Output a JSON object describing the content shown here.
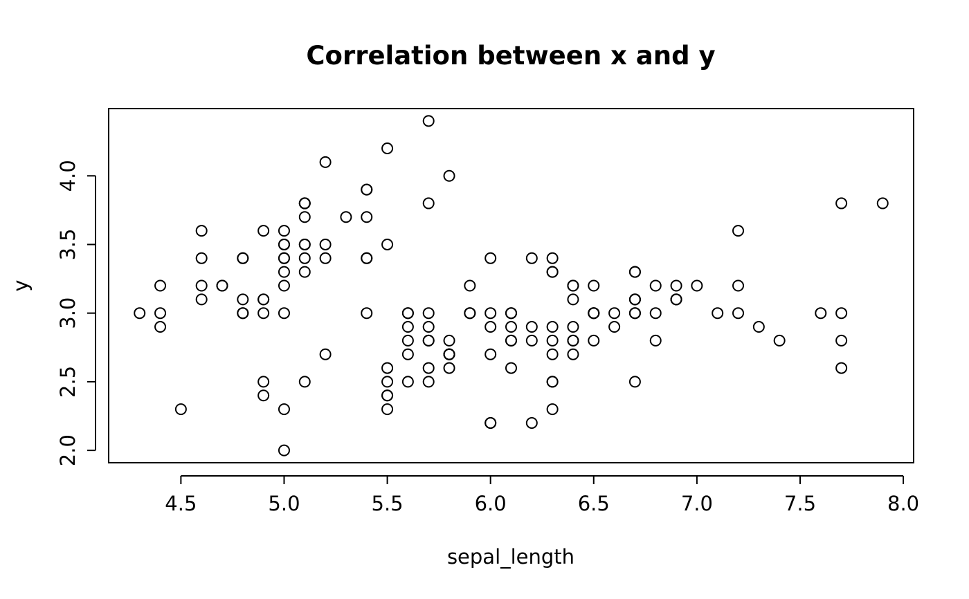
{
  "chart_data": {
    "type": "scatter",
    "title": "Correlation between x and y",
    "xlabel": "sepal_length",
    "ylabel": "y",
    "xlim": [
      4.15,
      8.05
    ],
    "ylim": [
      1.91,
      4.49
    ],
    "xticks": [
      4.5,
      5.0,
      5.5,
      6.0,
      6.5,
      7.0,
      7.5,
      8.0
    ],
    "yticks": [
      2.0,
      2.5,
      3.0,
      3.5,
      4.0
    ],
    "xtick_labels": [
      "4.5",
      "5.0",
      "5.5",
      "6.0",
      "6.5",
      "7.0",
      "7.5",
      "8.0"
    ],
    "ytick_labels": [
      "2.0",
      "2.5",
      "3.0",
      "3.5",
      "4.0"
    ],
    "grid": false,
    "marker": "open-circle",
    "points": [
      [
        5.1,
        3.5
      ],
      [
        4.9,
        3.0
      ],
      [
        4.7,
        3.2
      ],
      [
        4.6,
        3.1
      ],
      [
        5.0,
        3.6
      ],
      [
        5.4,
        3.9
      ],
      [
        4.6,
        3.4
      ],
      [
        5.0,
        3.4
      ],
      [
        4.4,
        2.9
      ],
      [
        4.9,
        3.1
      ],
      [
        5.4,
        3.7
      ],
      [
        4.8,
        3.4
      ],
      [
        4.8,
        3.0
      ],
      [
        4.3,
        3.0
      ],
      [
        5.8,
        4.0
      ],
      [
        5.7,
        4.4
      ],
      [
        5.4,
        3.9
      ],
      [
        5.1,
        3.5
      ],
      [
        5.7,
        3.8
      ],
      [
        5.1,
        3.8
      ],
      [
        5.4,
        3.4
      ],
      [
        5.1,
        3.7
      ],
      [
        4.6,
        3.6
      ],
      [
        5.1,
        3.3
      ],
      [
        4.8,
        3.4
      ],
      [
        5.0,
        3.0
      ],
      [
        5.0,
        3.4
      ],
      [
        5.2,
        3.5
      ],
      [
        5.2,
        3.4
      ],
      [
        4.7,
        3.2
      ],
      [
        4.8,
        3.1
      ],
      [
        5.4,
        3.4
      ],
      [
        5.2,
        4.1
      ],
      [
        5.5,
        4.2
      ],
      [
        4.9,
        3.1
      ],
      [
        5.0,
        3.2
      ],
      [
        5.5,
        3.5
      ],
      [
        4.9,
        3.6
      ],
      [
        4.4,
        3.0
      ],
      [
        5.1,
        3.4
      ],
      [
        5.0,
        3.5
      ],
      [
        4.5,
        2.3
      ],
      [
        4.4,
        3.2
      ],
      [
        5.0,
        3.5
      ],
      [
        5.1,
        3.8
      ],
      [
        4.8,
        3.0
      ],
      [
        5.1,
        3.8
      ],
      [
        4.6,
        3.2
      ],
      [
        5.3,
        3.7
      ],
      [
        5.0,
        3.3
      ],
      [
        7.0,
        3.2
      ],
      [
        6.4,
        3.2
      ],
      [
        6.9,
        3.1
      ],
      [
        5.5,
        2.3
      ],
      [
        6.5,
        2.8
      ],
      [
        5.7,
        2.8
      ],
      [
        6.3,
        3.3
      ],
      [
        4.9,
        2.4
      ],
      [
        6.6,
        2.9
      ],
      [
        5.2,
        2.7
      ],
      [
        5.0,
        2.0
      ],
      [
        5.9,
        3.0
      ],
      [
        6.0,
        2.2
      ],
      [
        6.1,
        2.9
      ],
      [
        5.6,
        2.9
      ],
      [
        6.7,
        3.1
      ],
      [
        5.6,
        3.0
      ],
      [
        5.8,
        2.7
      ],
      [
        6.2,
        2.2
      ],
      [
        5.6,
        2.5
      ],
      [
        5.9,
        3.2
      ],
      [
        6.1,
        2.8
      ],
      [
        6.3,
        2.5
      ],
      [
        6.1,
        2.8
      ],
      [
        6.4,
        2.9
      ],
      [
        6.6,
        3.0
      ],
      [
        6.8,
        2.8
      ],
      [
        6.7,
        3.0
      ],
      [
        6.0,
        2.9
      ],
      [
        5.7,
        2.6
      ],
      [
        5.5,
        2.4
      ],
      [
        5.5,
        2.4
      ],
      [
        5.8,
        2.7
      ],
      [
        6.0,
        2.7
      ],
      [
        5.4,
        3.0
      ],
      [
        6.0,
        3.4
      ],
      [
        6.7,
        3.1
      ],
      [
        6.3,
        2.3
      ],
      [
        5.6,
        3.0
      ],
      [
        5.5,
        2.5
      ],
      [
        5.5,
        2.6
      ],
      [
        6.1,
        3.0
      ],
      [
        5.8,
        2.6
      ],
      [
        5.0,
        2.3
      ],
      [
        5.6,
        2.7
      ],
      [
        5.7,
        3.0
      ],
      [
        5.7,
        2.9
      ],
      [
        6.2,
        2.9
      ],
      [
        5.1,
        2.5
      ],
      [
        5.7,
        2.8
      ],
      [
        6.3,
        3.3
      ],
      [
        5.8,
        2.7
      ],
      [
        7.1,
        3.0
      ],
      [
        6.3,
        2.9
      ],
      [
        6.5,
        3.0
      ],
      [
        7.6,
        3.0
      ],
      [
        4.9,
        2.5
      ],
      [
        7.3,
        2.9
      ],
      [
        6.7,
        2.5
      ],
      [
        7.2,
        3.6
      ],
      [
        6.5,
        3.2
      ],
      [
        6.4,
        2.7
      ],
      [
        6.8,
        3.0
      ],
      [
        5.7,
        2.5
      ],
      [
        5.8,
        2.8
      ],
      [
        6.4,
        3.2
      ],
      [
        6.5,
        3.0
      ],
      [
        7.7,
        3.8
      ],
      [
        7.7,
        2.6
      ],
      [
        6.0,
        2.2
      ],
      [
        6.9,
        3.2
      ],
      [
        5.6,
        2.8
      ],
      [
        7.7,
        2.8
      ],
      [
        6.3,
        2.7
      ],
      [
        6.7,
        3.3
      ],
      [
        7.2,
        3.2
      ],
      [
        6.2,
        2.8
      ],
      [
        6.1,
        3.0
      ],
      [
        6.4,
        2.8
      ],
      [
        7.2,
        3.0
      ],
      [
        7.4,
        2.8
      ],
      [
        7.9,
        3.8
      ],
      [
        6.4,
        2.8
      ],
      [
        6.3,
        2.8
      ],
      [
        6.1,
        2.6
      ],
      [
        7.7,
        3.0
      ],
      [
        6.3,
        3.4
      ],
      [
        6.4,
        3.1
      ],
      [
        6.0,
        3.0
      ],
      [
        6.9,
        3.1
      ],
      [
        6.7,
        3.1
      ],
      [
        6.9,
        3.1
      ],
      [
        5.8,
        2.7
      ],
      [
        6.8,
        3.2
      ],
      [
        6.7,
        3.3
      ],
      [
        6.7,
        3.0
      ],
      [
        6.3,
        2.5
      ],
      [
        6.5,
        3.0
      ],
      [
        6.2,
        3.4
      ],
      [
        5.9,
        3.0
      ]
    ]
  }
}
